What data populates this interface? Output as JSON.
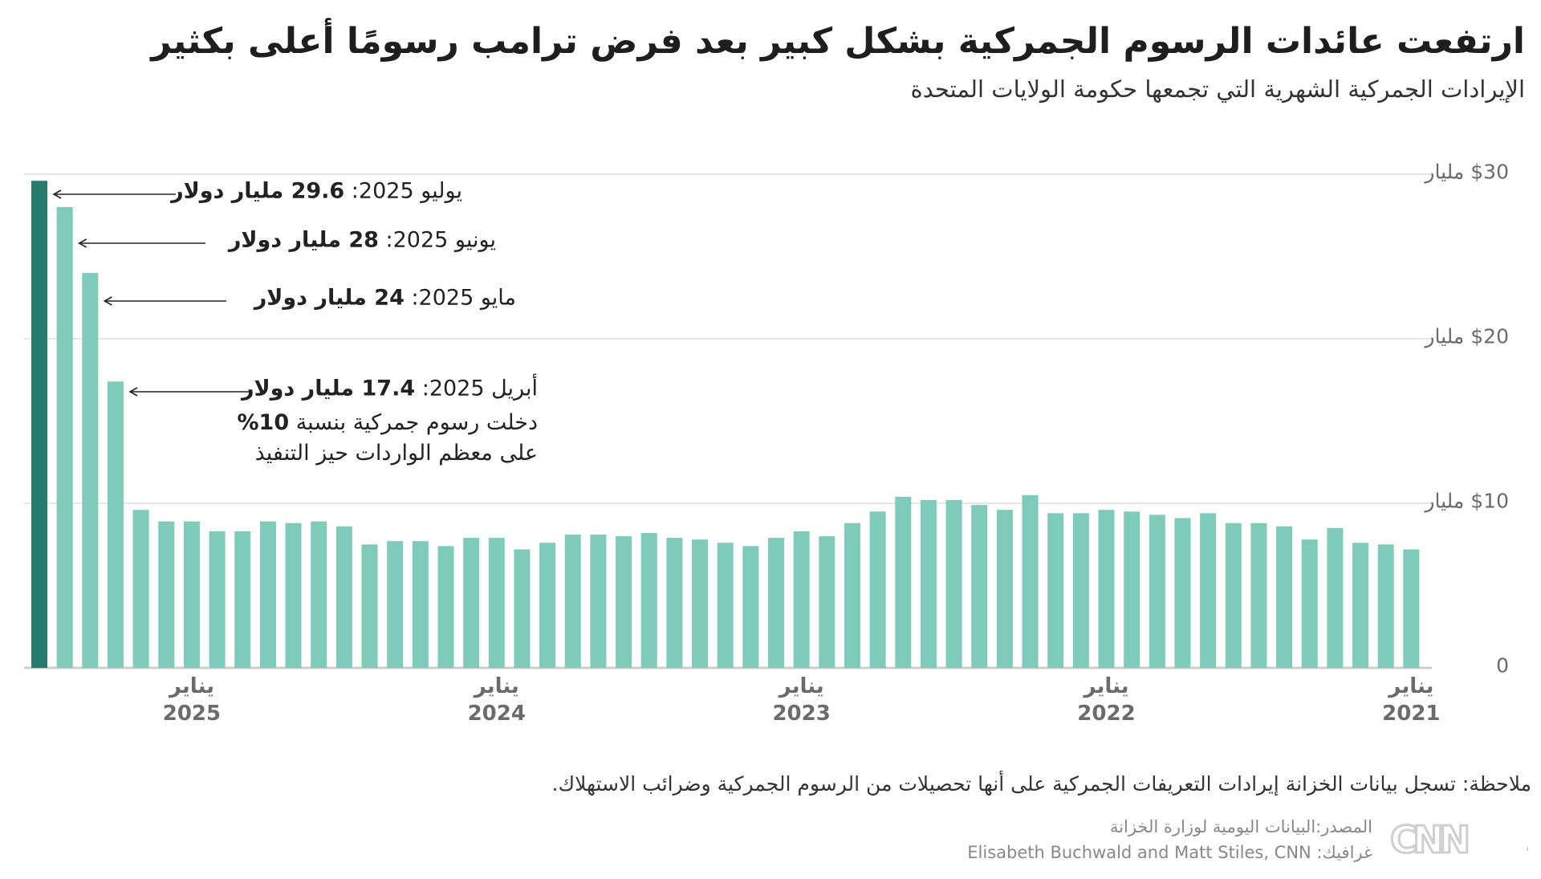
{
  "header": {
    "title": "ارتفعت عائدات الرسوم الجمركية بشكل كبير بعد فرض ترامب رسومًا أعلى بكثير",
    "subtitle": "الإيرادات الجمركية الشهرية التي تجمعها حكومة الولايات المتحدة"
  },
  "chart_data": {
    "type": "bar",
    "title": "الإيرادات الجمركية الشهرية التي تجمعها حكومة الولايات المتحدة",
    "xlabel": "",
    "ylabel": "مليار دولار",
    "ylim": [
      0,
      30
    ],
    "x_direction": "right-to-left (oldest on right)",
    "grid": true,
    "y_ticks": [
      {
        "value": 0,
        "label": "0"
      },
      {
        "value": 10,
        "label": "$10 مليار"
      },
      {
        "value": 20,
        "label": "$20 مليار"
      },
      {
        "value": 30,
        "label": "$30 مليار"
      }
    ],
    "x_ticks": [
      {
        "year": 2021,
        "month_label": "يناير",
        "year_label": "2021"
      },
      {
        "year": 2022,
        "month_label": "يناير",
        "year_label": "2022"
      },
      {
        "year": 2023,
        "month_label": "يناير",
        "year_label": "2023"
      },
      {
        "year": 2024,
        "month_label": "يناير",
        "year_label": "2024"
      },
      {
        "year": 2025,
        "month_label": "يناير",
        "year_label": "2025"
      }
    ],
    "start": "2021-01",
    "end": "2025-07",
    "values": [
      7.2,
      7.5,
      7.6,
      8.5,
      7.8,
      8.6,
      8.8,
      8.8,
      9.4,
      9.1,
      9.3,
      9.5,
      9.6,
      9.4,
      9.4,
      10.5,
      9.6,
      9.9,
      10.2,
      10.2,
      10.4,
      9.5,
      8.8,
      8.0,
      8.3,
      7.9,
      7.4,
      7.6,
      7.8,
      7.9,
      8.2,
      8.0,
      8.1,
      8.1,
      7.6,
      7.2,
      7.9,
      7.9,
      7.4,
      7.7,
      7.7,
      7.5,
      8.6,
      8.9,
      8.8,
      8.9,
      8.3,
      8.3,
      8.9,
      8.9,
      9.6,
      17.4,
      24,
      28,
      29.6
    ],
    "highlight_last": true,
    "colors": {
      "bar": "#7dcbb8",
      "highlight": "#267c6c",
      "grid": "#e6e6e6",
      "axis": "#cfcfcf"
    },
    "annotations": [
      {
        "month_index": 54,
        "label": "يوليو 2025: ",
        "value": "29.6 مليار دولار"
      },
      {
        "month_index": 53,
        "label": "يونيو 2025: ",
        "value": "28 مليار دولار"
      },
      {
        "month_index": 52,
        "label": "مايو 2025: ",
        "value": "24 مليار دولار"
      },
      {
        "month_index": 51,
        "label": "أبريل 2025: ",
        "value": "17.4 مليار دولار",
        "note_line1_pre": "دخلت رسوم جمركية بنسبة ",
        "note_line1_bold": "10%",
        "note_line2": "على معظم الواردات حيز التنفيذ"
      }
    ]
  },
  "footer": {
    "note": "ملاحظة: تسجل بيانات الخزانة إيرادات التعريفات الجمركية على أنها تحصيلات من الرسوم الجمركية وضرائب الاستهلاك.",
    "source": "المصدر:البيانات اليومية لوزارة الخزانة",
    "credit": "غرافيك: Elisabeth Buchwald and Matt Stiles, CNN",
    "logo_text": "CNN بالعربية"
  }
}
